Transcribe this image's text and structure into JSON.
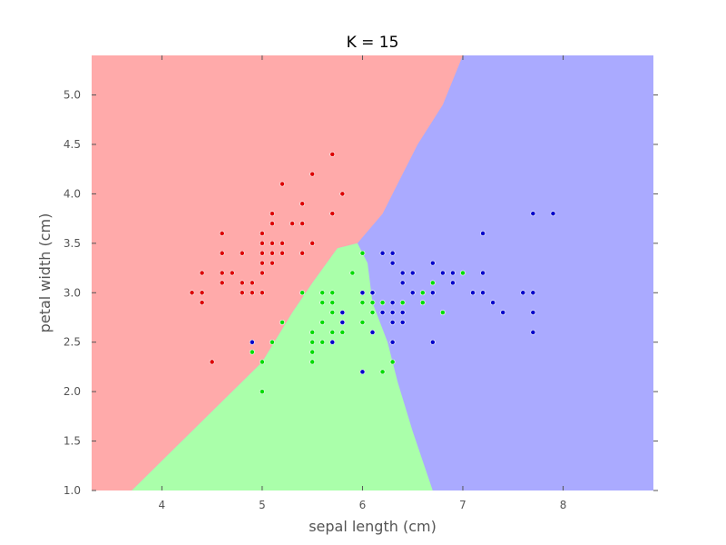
{
  "chart_data": {
    "type": "scatter",
    "title": "K = 15",
    "xlabel": "sepal length (cm)",
    "ylabel": "petal width (cm)",
    "xlim": [
      3.3,
      8.9
    ],
    "ylim": [
      1.0,
      5.4
    ],
    "xticks": [
      "4",
      "5",
      "6",
      "7",
      "8"
    ],
    "yticks": [
      "1.0",
      "1.5",
      "2.0",
      "2.5",
      "3.0",
      "3.5",
      "4.0",
      "4.5",
      "5.0"
    ],
    "grid": false,
    "background_regions": {
      "colors": {
        "red": "#ffaaaa",
        "green": "#aaffaa",
        "blue": "#aaaaff"
      },
      "red_green_boundary": [
        [
          3.7,
          1.0
        ],
        [
          4.0,
          1.3
        ],
        [
          4.6,
          1.9
        ],
        [
          5.0,
          2.3
        ],
        [
          5.3,
          2.8
        ],
        [
          5.5,
          3.1
        ],
        [
          5.75,
          3.45
        ],
        [
          5.95,
          3.5
        ]
      ],
      "green_blue_boundary": [
        [
          5.95,
          3.5
        ],
        [
          6.05,
          3.3
        ],
        [
          6.1,
          2.9
        ],
        [
          6.25,
          2.5
        ],
        [
          6.35,
          2.1
        ],
        [
          6.5,
          1.6
        ],
        [
          6.7,
          1.0
        ]
      ],
      "red_blue_boundary": [
        [
          5.95,
          3.5
        ],
        [
          6.2,
          3.8
        ],
        [
          6.35,
          4.1
        ],
        [
          6.55,
          4.5
        ],
        [
          6.8,
          4.9
        ],
        [
          7.0,
          5.4
        ]
      ]
    },
    "series": [
      {
        "color": "#dd0000",
        "points": [
          [
            4.3,
            3.0
          ],
          [
            4.4,
            3.2
          ],
          [
            4.4,
            3.0
          ],
          [
            4.4,
            2.9
          ],
          [
            4.5,
            2.3
          ],
          [
            4.6,
            3.6
          ],
          [
            4.6,
            3.4
          ],
          [
            4.6,
            3.2
          ],
          [
            4.6,
            3.1
          ],
          [
            4.7,
            3.2
          ],
          [
            4.8,
            3.4
          ],
          [
            4.8,
            3.1
          ],
          [
            4.8,
            3.0
          ],
          [
            4.9,
            3.1
          ],
          [
            4.9,
            3.0
          ],
          [
            5.0,
            3.6
          ],
          [
            5.0,
            3.5
          ],
          [
            5.0,
            3.4
          ],
          [
            5.0,
            3.3
          ],
          [
            5.0,
            3.2
          ],
          [
            5.0,
            3.0
          ],
          [
            5.1,
            3.8
          ],
          [
            5.1,
            3.7
          ],
          [
            5.1,
            3.5
          ],
          [
            5.1,
            3.4
          ],
          [
            5.1,
            3.3
          ],
          [
            5.2,
            4.1
          ],
          [
            5.2,
            3.5
          ],
          [
            5.2,
            3.4
          ],
          [
            5.3,
            3.7
          ],
          [
            5.4,
            3.9
          ],
          [
            5.4,
            3.7
          ],
          [
            5.4,
            3.4
          ],
          [
            5.5,
            4.2
          ],
          [
            5.5,
            3.5
          ],
          [
            5.7,
            4.4
          ],
          [
            5.7,
            3.8
          ],
          [
            5.8,
            4.0
          ]
        ]
      },
      {
        "color": "#00dd00",
        "points": [
          [
            4.9,
            2.4
          ],
          [
            5.0,
            2.3
          ],
          [
            5.0,
            2.0
          ],
          [
            5.1,
            2.5
          ],
          [
            5.2,
            2.7
          ],
          [
            5.4,
            3.0
          ],
          [
            5.5,
            2.6
          ],
          [
            5.5,
            2.5
          ],
          [
            5.5,
            2.4
          ],
          [
            5.5,
            2.3
          ],
          [
            5.6,
            3.0
          ],
          [
            5.6,
            2.9
          ],
          [
            5.6,
            2.7
          ],
          [
            5.6,
            2.5
          ],
          [
            5.7,
            3.0
          ],
          [
            5.7,
            2.9
          ],
          [
            5.7,
            2.8
          ],
          [
            5.7,
            2.6
          ],
          [
            5.8,
            2.7
          ],
          [
            5.8,
            2.6
          ],
          [
            5.9,
            3.2
          ],
          [
            6.0,
            3.4
          ],
          [
            6.0,
            2.9
          ],
          [
            6.0,
            2.7
          ],
          [
            6.1,
            3.0
          ],
          [
            6.1,
            2.9
          ],
          [
            6.1,
            2.8
          ],
          [
            6.2,
            2.9
          ],
          [
            6.2,
            2.2
          ],
          [
            6.3,
            2.3
          ],
          [
            6.4,
            2.9
          ],
          [
            6.6,
            3.0
          ],
          [
            6.6,
            2.9
          ],
          [
            6.7,
            3.1
          ],
          [
            6.8,
            2.8
          ],
          [
            7.0,
            3.2
          ]
        ]
      },
      {
        "color": "#0000cc",
        "points": [
          [
            4.9,
            2.5
          ],
          [
            5.7,
            2.5
          ],
          [
            5.8,
            2.8
          ],
          [
            5.8,
            2.7
          ],
          [
            6.0,
            3.0
          ],
          [
            6.0,
            2.2
          ],
          [
            6.1,
            3.0
          ],
          [
            6.1,
            2.6
          ],
          [
            6.2,
            3.4
          ],
          [
            6.2,
            2.8
          ],
          [
            6.3,
            3.4
          ],
          [
            6.3,
            3.3
          ],
          [
            6.3,
            2.9
          ],
          [
            6.3,
            2.8
          ],
          [
            6.3,
            2.7
          ],
          [
            6.3,
            2.5
          ],
          [
            6.4,
            3.2
          ],
          [
            6.4,
            3.1
          ],
          [
            6.4,
            2.8
          ],
          [
            6.4,
            2.7
          ],
          [
            6.5,
            3.2
          ],
          [
            6.5,
            3.0
          ],
          [
            6.7,
            3.3
          ],
          [
            6.7,
            3.0
          ],
          [
            6.7,
            2.5
          ],
          [
            6.8,
            3.2
          ],
          [
            6.9,
            3.2
          ],
          [
            6.9,
            3.1
          ],
          [
            7.1,
            3.0
          ],
          [
            7.2,
            3.6
          ],
          [
            7.2,
            3.2
          ],
          [
            7.2,
            3.0
          ],
          [
            7.3,
            2.9
          ],
          [
            7.4,
            2.8
          ],
          [
            7.6,
            3.0
          ],
          [
            7.7,
            3.8
          ],
          [
            7.7,
            3.0
          ],
          [
            7.7,
            2.8
          ],
          [
            7.7,
            2.6
          ],
          [
            7.9,
            3.8
          ]
        ]
      }
    ]
  }
}
